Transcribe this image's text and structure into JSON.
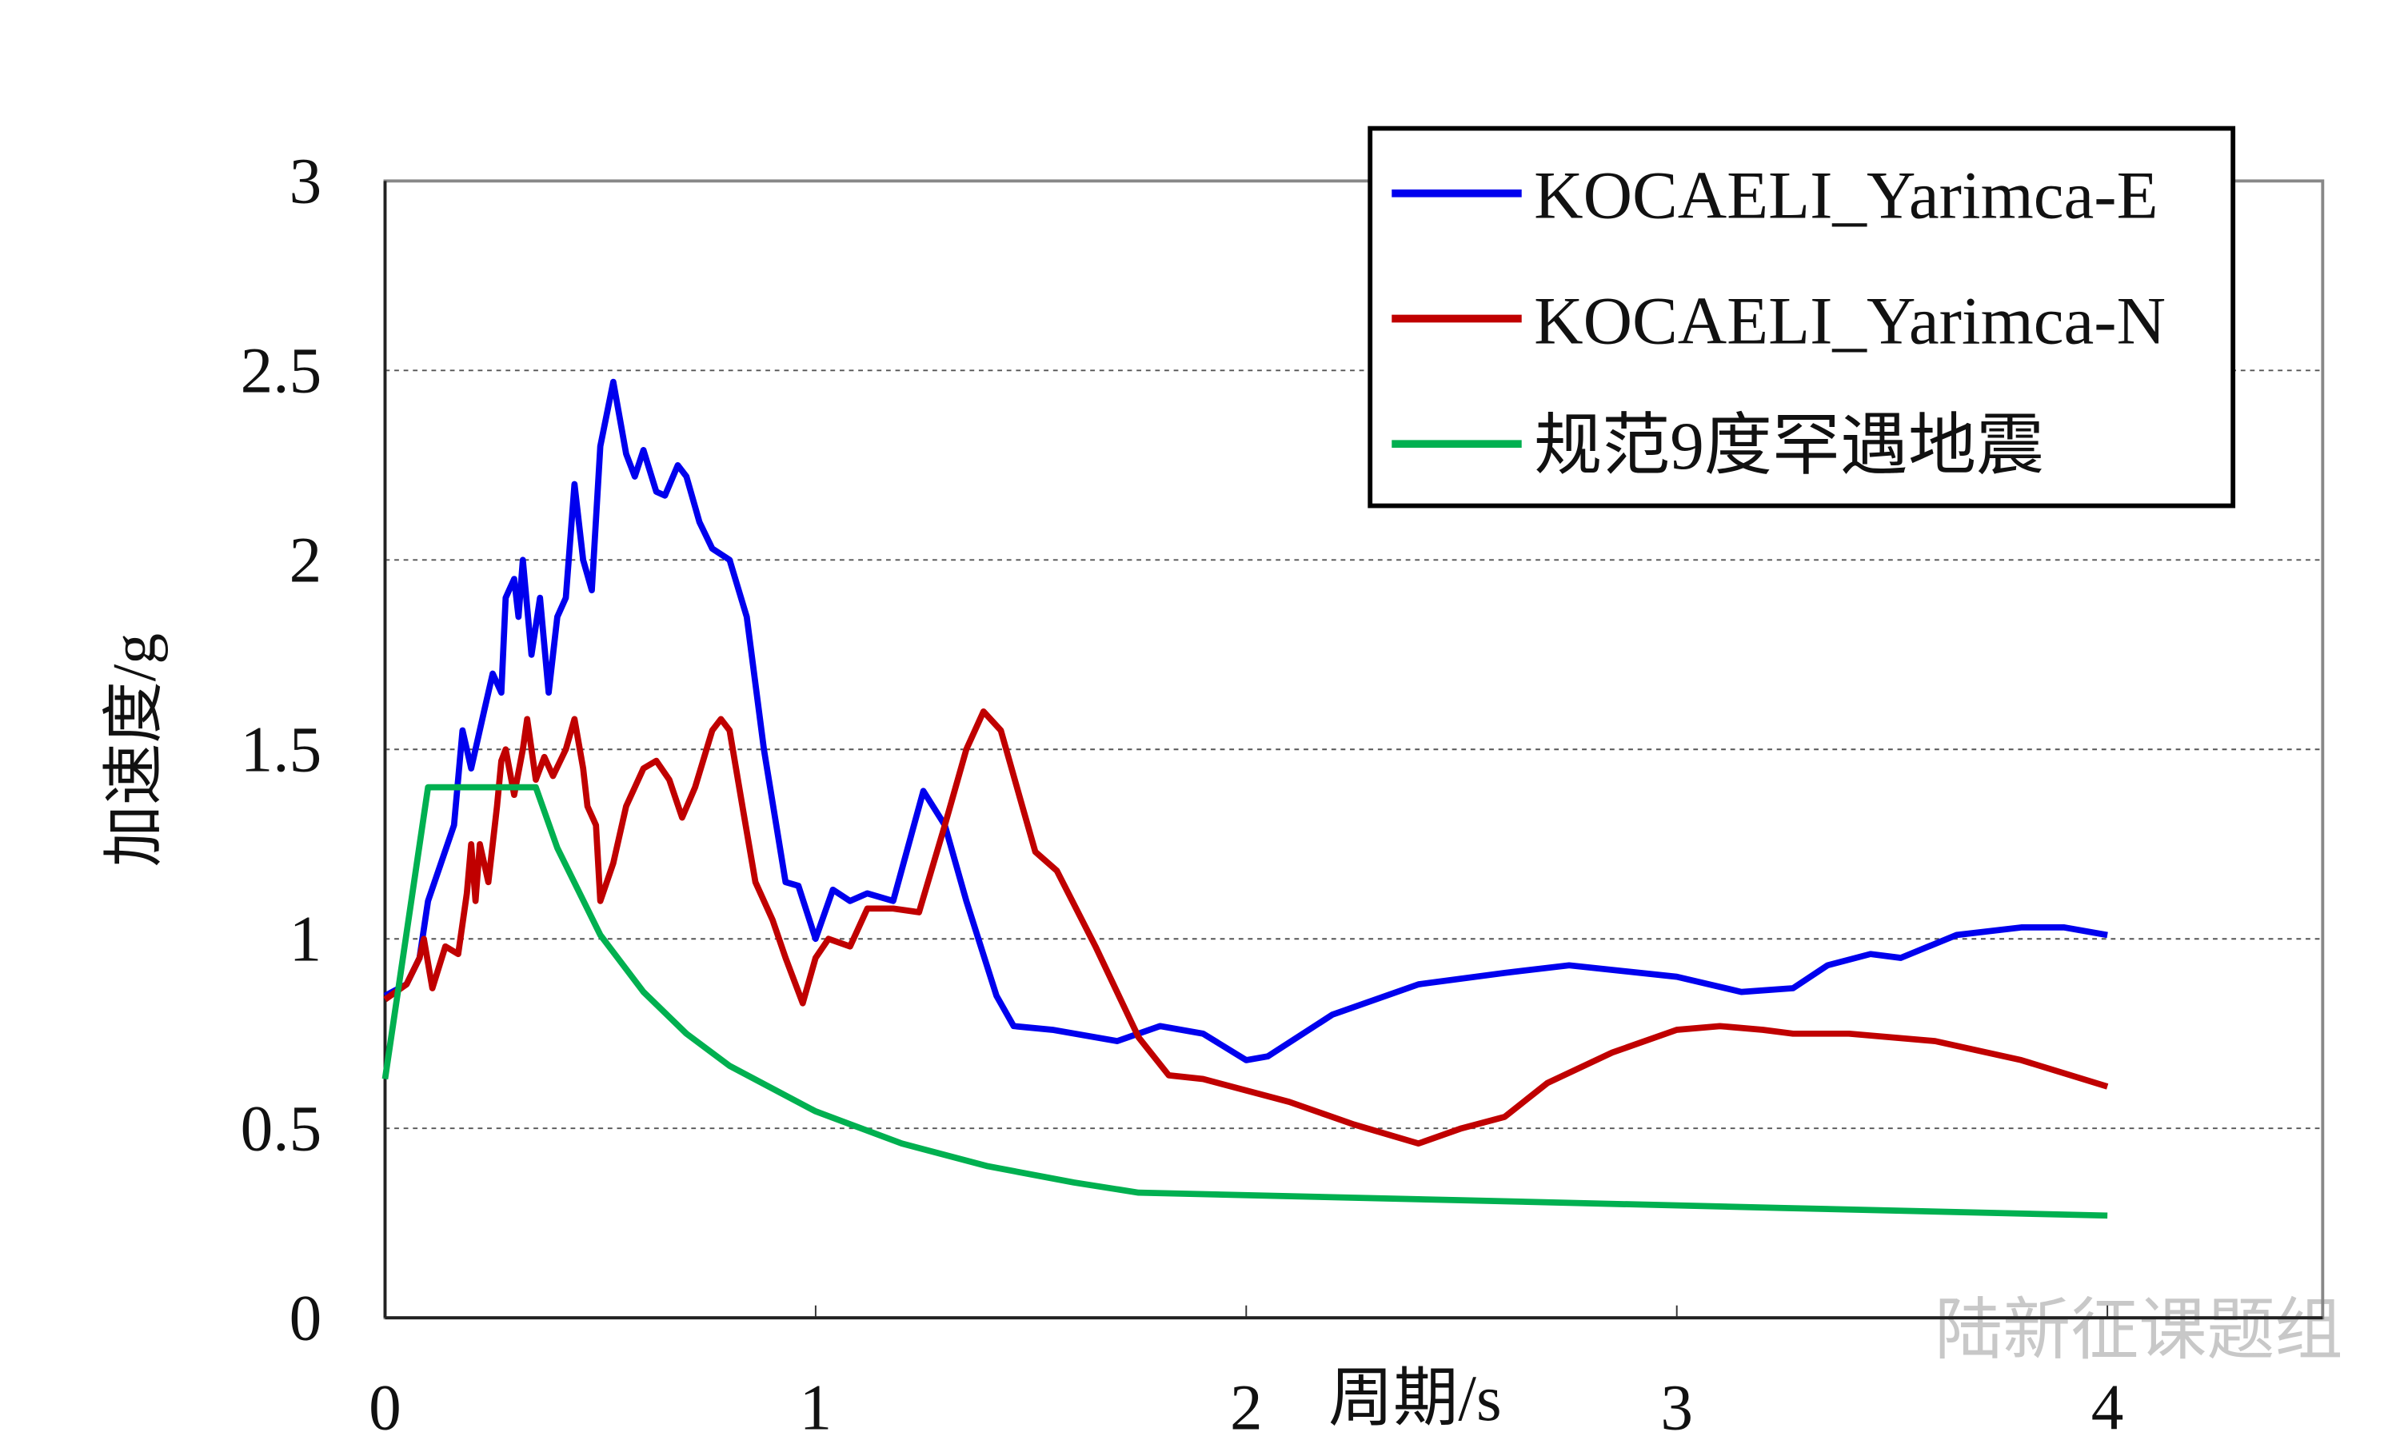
{
  "chart_data": {
    "type": "line",
    "x_label": "周期/s",
    "y_label": "加速度/g",
    "xlim": [
      0,
      4.5
    ],
    "xticks": [
      0,
      1,
      2,
      3,
      4
    ],
    "ylim": [
      0,
      3
    ],
    "yticks": [
      0,
      0.5,
      1,
      1.5,
      2,
      2.5,
      3
    ],
    "grid": true,
    "legend": "top-right",
    "watermark": "陆新征课题组",
    "series": [
      {
        "name": "KOCAELI_Yarimca-E",
        "color": "#0000ee",
        "x": [
          0,
          0.05,
          0.08,
          0.1,
          0.13,
          0.16,
          0.18,
          0.2,
          0.23,
          0.25,
          0.27,
          0.28,
          0.3,
          0.31,
          0.32,
          0.34,
          0.36,
          0.38,
          0.4,
          0.42,
          0.44,
          0.46,
          0.48,
          0.5,
          0.53,
          0.56,
          0.58,
          0.6,
          0.63,
          0.65,
          0.68,
          0.7,
          0.73,
          0.76,
          0.8,
          0.84,
          0.88,
          0.93,
          0.96,
          1.0,
          1.04,
          1.08,
          1.12,
          1.18,
          1.25,
          1.3,
          1.35,
          1.42,
          1.46,
          1.55,
          1.7,
          1.8,
          1.9,
          2.0,
          2.05,
          2.2,
          2.4,
          2.6,
          2.75,
          3.0,
          3.15,
          3.27,
          3.35,
          3.45,
          3.52,
          3.65,
          3.8,
          3.9,
          4.0
        ],
        "values": [
          0.85,
          0.88,
          0.95,
          1.1,
          1.2,
          1.3,
          1.55,
          1.45,
          1.6,
          1.7,
          1.65,
          1.9,
          1.95,
          1.85,
          2.0,
          1.75,
          1.9,
          1.65,
          1.85,
          1.9,
          2.2,
          2.0,
          1.92,
          2.3,
          2.47,
          2.28,
          2.22,
          2.29,
          2.18,
          2.17,
          2.25,
          2.22,
          2.1,
          2.03,
          2.0,
          1.85,
          1.5,
          1.15,
          1.14,
          1.0,
          1.13,
          1.1,
          1.12,
          1.1,
          1.39,
          1.3,
          1.1,
          0.85,
          0.77,
          0.76,
          0.73,
          0.77,
          0.75,
          0.68,
          0.69,
          0.8,
          0.88,
          0.91,
          0.93,
          0.9,
          0.86,
          0.87,
          0.93,
          0.96,
          0.95,
          1.01,
          1.03,
          1.03,
          1.01
        ]
      },
      {
        "name": "KOCAELI_Yarimca-N",
        "color": "#c00000",
        "x": [
          0,
          0.05,
          0.08,
          0.09,
          0.11,
          0.14,
          0.17,
          0.19,
          0.2,
          0.21,
          0.22,
          0.24,
          0.26,
          0.27,
          0.28,
          0.3,
          0.32,
          0.33,
          0.35,
          0.37,
          0.39,
          0.42,
          0.44,
          0.46,
          0.47,
          0.49,
          0.5,
          0.53,
          0.56,
          0.6,
          0.63,
          0.66,
          0.69,
          0.72,
          0.76,
          0.78,
          0.8,
          0.83,
          0.86,
          0.9,
          0.93,
          0.97,
          1.0,
          1.03,
          1.08,
          1.12,
          1.18,
          1.24,
          1.3,
          1.35,
          1.39,
          1.43,
          1.48,
          1.51,
          1.56,
          1.65,
          1.75,
          1.82,
          1.9,
          2.1,
          2.25,
          2.4,
          2.5,
          2.6,
          2.7,
          2.85,
          3.0,
          3.1,
          3.2,
          3.27,
          3.4,
          3.6,
          3.8,
          4.0
        ],
        "values": [
          0.84,
          0.88,
          0.95,
          1.0,
          0.87,
          0.98,
          0.96,
          1.12,
          1.25,
          1.1,
          1.25,
          1.15,
          1.35,
          1.47,
          1.5,
          1.38,
          1.5,
          1.58,
          1.42,
          1.48,
          1.43,
          1.5,
          1.58,
          1.45,
          1.35,
          1.3,
          1.1,
          1.2,
          1.35,
          1.45,
          1.47,
          1.42,
          1.32,
          1.4,
          1.55,
          1.58,
          1.55,
          1.35,
          1.15,
          1.05,
          0.95,
          0.83,
          0.95,
          1.0,
          0.98,
          1.08,
          1.08,
          1.07,
          1.3,
          1.5,
          1.6,
          1.55,
          1.35,
          1.23,
          1.18,
          0.98,
          0.74,
          0.64,
          0.63,
          0.57,
          0.51,
          0.46,
          0.5,
          0.53,
          0.62,
          0.7,
          0.76,
          0.77,
          0.76,
          0.75,
          0.75,
          0.73,
          0.68,
          0.61
        ]
      },
      {
        "name": "规范9度罕遇地震",
        "color": "#00b050",
        "x": [
          0,
          0.1,
          0.35,
          0.4,
          0.5,
          0.6,
          0.7,
          0.8,
          1.0,
          1.2,
          1.4,
          1.6,
          1.75,
          2.5,
          3.25,
          4.0
        ],
        "values": [
          0.63,
          1.4,
          1.4,
          1.24,
          1.01,
          0.86,
          0.75,
          0.665,
          0.545,
          0.46,
          0.4,
          0.357,
          0.33,
          0.31,
          0.29,
          0.27
        ]
      }
    ]
  }
}
